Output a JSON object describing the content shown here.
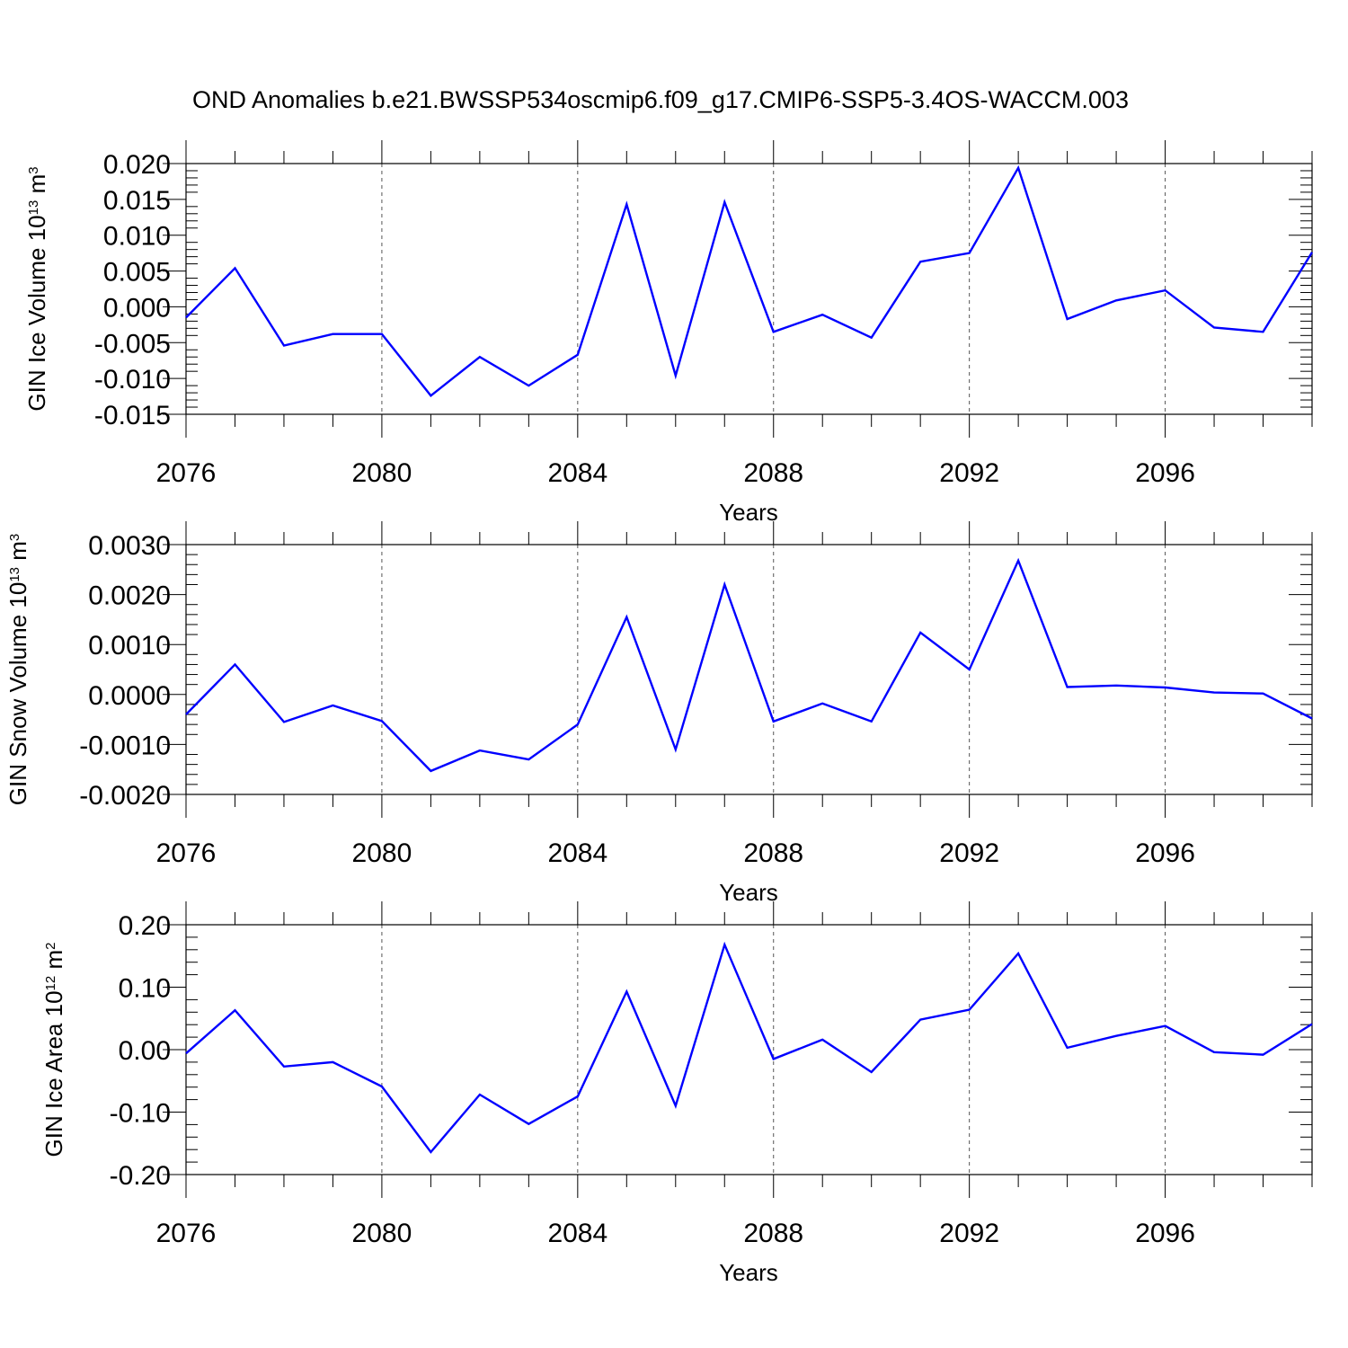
{
  "title": "OND Anomalies b.e21.BWSSP534oscmip6.f09_g17.CMIP6-SSP5-3.4OS-WACCM.003",
  "line_color": "#0000ff",
  "chart_data": [
    {
      "type": "line",
      "xlabel": "Years",
      "ylabel": {
        "text": "GIN Ice Volume 10",
        "sup": "13",
        "unit": " m",
        "unit_sup": "3"
      },
      "xlim": [
        2076,
        2099
      ],
      "ylim": [
        -0.015,
        0.02
      ],
      "xticks": [
        2076,
        2080,
        2084,
        2088,
        2092,
        2096
      ],
      "xtick_labels": [
        "2076",
        "2080",
        "2084",
        "2088",
        "2092",
        "2096"
      ],
      "yticks": [
        -0.015,
        -0.01,
        -0.005,
        0.0,
        0.005,
        0.01,
        0.015,
        0.02
      ],
      "ytick_labels": [
        "-0.015",
        "-0.010",
        "-0.005",
        "0.000",
        "0.005",
        "0.010",
        "0.015",
        "0.020"
      ],
      "x": [
        2076,
        2077,
        2078,
        2079,
        2080,
        2081,
        2082,
        2083,
        2084,
        2085,
        2086,
        2087,
        2088,
        2089,
        2090,
        2091,
        2092,
        2093,
        2094,
        2095,
        2096,
        2097,
        2098,
        2099
      ],
      "y": [
        -0.0015,
        0.0054,
        -0.0054,
        -0.0038,
        -0.0038,
        -0.0124,
        -0.007,
        -0.011,
        -0.0067,
        0.0143,
        -0.0096,
        0.0146,
        -0.0035,
        -0.0011,
        -0.0043,
        0.0063,
        0.0075,
        0.0194,
        -0.0017,
        0.0009,
        0.0023,
        -0.0029,
        -0.0035,
        0.0076
      ]
    },
    {
      "type": "line",
      "xlabel": "Years",
      "ylabel": {
        "text": "GIN Snow Volume 10",
        "sup": "13",
        "unit": " m",
        "unit_sup": "3"
      },
      "xlim": [
        2076,
        2099
      ],
      "ylim": [
        -0.002,
        0.003
      ],
      "xticks": [
        2076,
        2080,
        2084,
        2088,
        2092,
        2096
      ],
      "xtick_labels": [
        "2076",
        "2080",
        "2084",
        "2088",
        "2092",
        "2096"
      ],
      "yticks": [
        -0.002,
        -0.001,
        0.0,
        0.001,
        0.002,
        0.003
      ],
      "ytick_labels": [
        "-0.0020",
        "-0.0010",
        "0.0000",
        "0.0010",
        "0.0020",
        "0.0030"
      ],
      "x": [
        2076,
        2077,
        2078,
        2079,
        2080,
        2081,
        2082,
        2083,
        2084,
        2085,
        2086,
        2087,
        2088,
        2089,
        2090,
        2091,
        2092,
        2093,
        2094,
        2095,
        2096,
        2097,
        2098,
        2099
      ],
      "y": [
        -0.0004,
        0.0006,
        -0.00055,
        -0.00022,
        -0.00053,
        -0.00153,
        -0.00112,
        -0.0013,
        -0.0006,
        0.00155,
        -0.0011,
        0.0022,
        -0.00054,
        -0.00018,
        -0.00054,
        0.00124,
        0.0005,
        0.00268,
        0.00015,
        0.00018,
        0.00014,
        4e-05,
        2e-05,
        -0.00048
      ]
    },
    {
      "type": "line",
      "xlabel": "Years",
      "ylabel": {
        "text": "GIN Ice Area 10",
        "sup": "12",
        "unit": " m",
        "unit_sup": "2"
      },
      "xlim": [
        2076,
        2099
      ],
      "ylim": [
        -0.2,
        0.2
      ],
      "xticks": [
        2076,
        2080,
        2084,
        2088,
        2092,
        2096
      ],
      "xtick_labels": [
        "2076",
        "2080",
        "2084",
        "2088",
        "2092",
        "2096"
      ],
      "yticks": [
        -0.2,
        -0.1,
        0.0,
        0.1,
        0.2
      ],
      "ytick_labels": [
        "-0.20",
        "-0.10",
        "0.00",
        "0.10",
        "0.20"
      ],
      "x": [
        2076,
        2077,
        2078,
        2079,
        2080,
        2081,
        2082,
        2083,
        2084,
        2085,
        2086,
        2087,
        2088,
        2089,
        2090,
        2091,
        2092,
        2093,
        2094,
        2095,
        2096,
        2097,
        2098,
        2099
      ],
      "y": [
        -0.006,
        0.063,
        -0.027,
        -0.02,
        -0.059,
        -0.164,
        -0.072,
        -0.119,
        -0.075,
        0.093,
        -0.09,
        0.168,
        -0.015,
        0.016,
        -0.036,
        0.048,
        0.064,
        0.154,
        0.003,
        0.022,
        0.038,
        -0.004,
        -0.008,
        0.041
      ]
    }
  ]
}
